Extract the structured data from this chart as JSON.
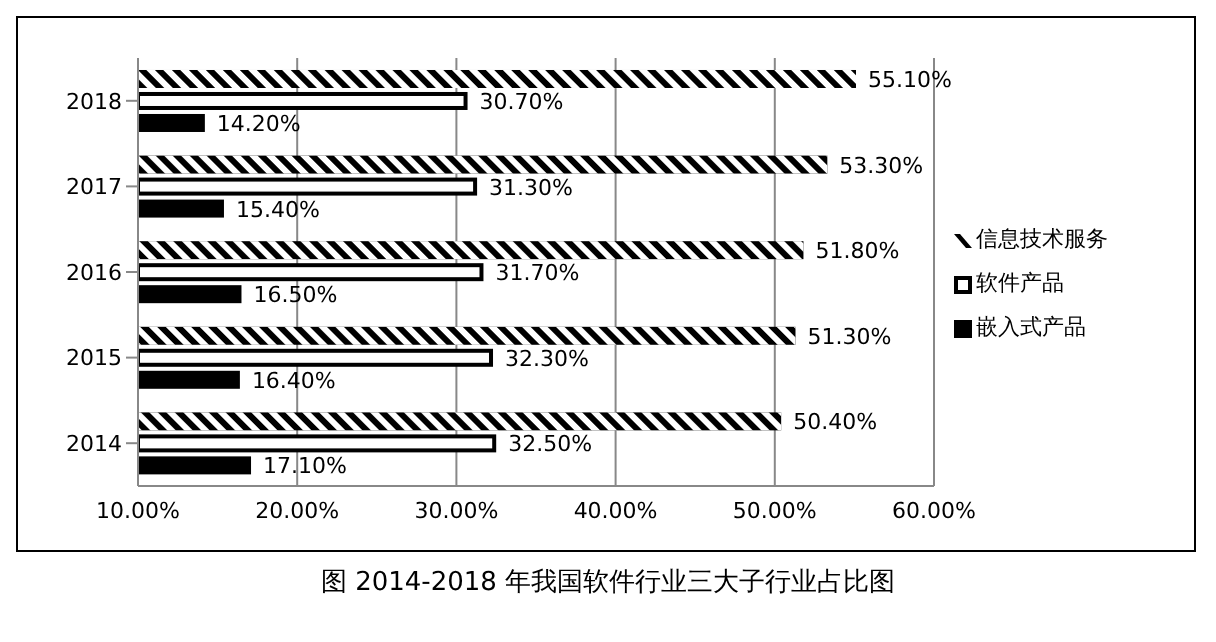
{
  "chart_data": {
    "type": "bar",
    "orientation": "horizontal",
    "title": "图 2014-2018 年我国软件行业三大子行业占比图",
    "categories": [
      "2018",
      "2017",
      "2016",
      "2015",
      "2014"
    ],
    "series": [
      {
        "name": "信息技术服务",
        "color": "#000000",
        "values": [
          55.1,
          53.3,
          51.8,
          51.3,
          50.4
        ],
        "value_labels": [
          "55.10%",
          "53.30%",
          "51.80%",
          "51.30%",
          "50.40%"
        ]
      },
      {
        "name": "软件产品",
        "color": "#ffffff",
        "values": [
          30.7,
          31.3,
          31.7,
          32.3,
          32.5
        ],
        "value_labels": [
          "30.70%",
          "31.30%",
          "31.70%",
          "32.30%",
          "32.50%"
        ]
      },
      {
        "name": "嵌入式产品",
        "color": "#000000",
        "values": [
          14.2,
          15.4,
          16.5,
          16.4,
          17.1
        ],
        "value_labels": [
          "14.20%",
          "15.40%",
          "16.50%",
          "16.40%",
          "17.10%"
        ]
      }
    ],
    "xlim": [
      10,
      60
    ],
    "xticks": [
      {
        "value": 10,
        "label": "10.00%"
      },
      {
        "value": 20,
        "label": "20.00%"
      },
      {
        "value": 30,
        "label": "30.00%"
      },
      {
        "value": 40,
        "label": "40.00%"
      },
      {
        "value": 50,
        "label": "50.00%"
      },
      {
        "value": 60,
        "label": "60.00%"
      }
    ],
    "grid": "x",
    "legend": "right"
  }
}
